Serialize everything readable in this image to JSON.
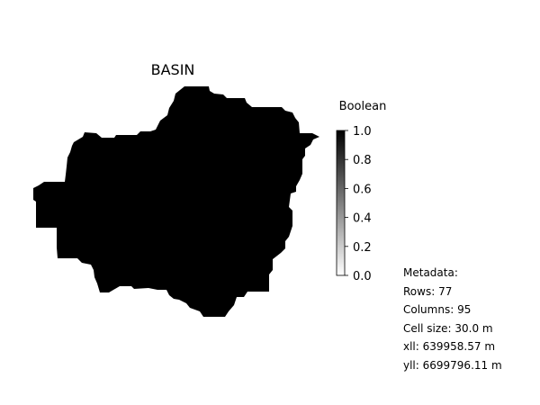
{
  "map": {
    "title": "BASIN",
    "fill_color": "#000000",
    "background": "#ffffff"
  },
  "colorbar": {
    "title": "Boolean",
    "range": [
      0.0,
      1.0
    ],
    "colormap": "gray_r",
    "ticks": [
      "0.0",
      "0.2",
      "0.4",
      "0.6",
      "0.8",
      "1.0"
    ]
  },
  "metadata": {
    "heading": "Metadata:",
    "rows": "Rows: 77",
    "columns": "Columns: 95",
    "cell_size": "Cell size: 30.0 m",
    "xll": "xll: 639958.57 m",
    "yll": "yll: 6699796.11 m"
  }
}
